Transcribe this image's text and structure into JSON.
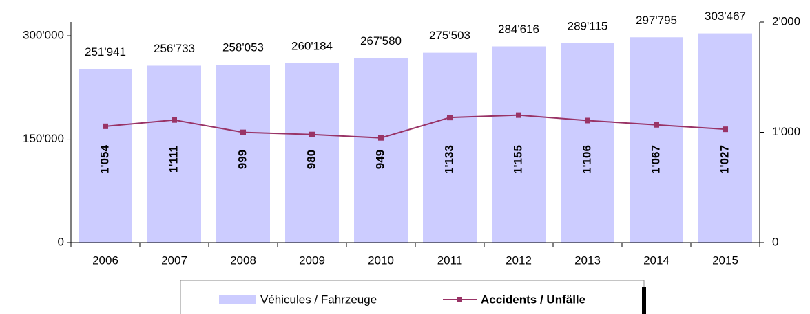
{
  "chart_data": {
    "type": "bar",
    "categories": [
      "2006",
      "2007",
      "2008",
      "2009",
      "2010",
      "2011",
      "2012",
      "2013",
      "2014",
      "2015"
    ],
    "series": [
      {
        "name": "Véhicules / Fahrzeuge",
        "type": "bar",
        "color": "#ccccff",
        "values": [
          251941,
          256733,
          258053,
          260184,
          267580,
          275503,
          284616,
          289115,
          297795,
          303467
        ],
        "value_labels": [
          "251'941",
          "256'733",
          "258'053",
          "260'184",
          "267'580",
          "275'503",
          "284'616",
          "289'115",
          "297'795",
          "303'467"
        ]
      },
      {
        "name": "Accidents / Unfälle",
        "type": "line",
        "axis": "y2",
        "color": "#993366",
        "values": [
          1054,
          1111,
          999,
          980,
          949,
          1133,
          1155,
          1106,
          1067,
          1027
        ],
        "value_labels": [
          "1'054",
          "1'111",
          "999",
          "980",
          "949",
          "1'133",
          "1'155",
          "1'106",
          "1'067",
          "1'027"
        ]
      }
    ],
    "ylim": [
      0,
      320000
    ],
    "yticks": [
      0,
      {
        "value": 150000,
        "label": "150'000"
      },
      {
        "value": 300000,
        "label": "300'000"
      }
    ],
    "y2lim": [
      0,
      2000
    ],
    "y2ticks": [
      0,
      {
        "value": 1000,
        "label": "1'000"
      },
      {
        "value": 2000,
        "label": "2'000"
      }
    ],
    "legend": "bottom"
  }
}
